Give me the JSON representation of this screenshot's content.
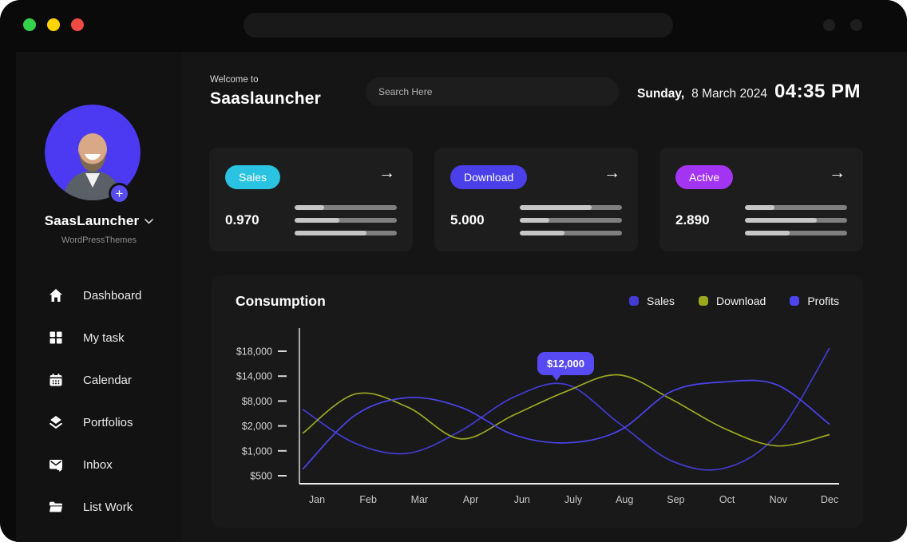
{
  "window": {
    "traffic_lights": [
      {
        "name": "green-light",
        "color": "#33d24b"
      },
      {
        "name": "yellow-light",
        "color": "#ffd400"
      },
      {
        "name": "red-light",
        "color": "#ee4b45"
      }
    ],
    "address_bar_value": ""
  },
  "sidebar": {
    "profile": {
      "name": "SaasLauncher",
      "org": "WordPressThemes",
      "add_label": "+"
    },
    "items": [
      {
        "icon": "home-icon",
        "label": "Dashboard"
      },
      {
        "icon": "grid-icon",
        "label": "My task"
      },
      {
        "icon": "calendar-icon",
        "label": "Calendar"
      },
      {
        "icon": "layers-icon",
        "label": "Portfolios"
      },
      {
        "icon": "inbox-icon",
        "label": "Inbox"
      },
      {
        "icon": "folder-icon",
        "label": "List Work"
      }
    ]
  },
  "header": {
    "welcome": "Welcome to",
    "brand": "Saaslauncher",
    "search_placeholder": "Search Here",
    "date_day": "Sunday,",
    "date_rest": "8 March 2024",
    "time": "04:35 PM"
  },
  "stat_cards": [
    {
      "badge": "Sales",
      "badge_color": "#2bc3e2",
      "value": "0.970",
      "arrow": "→",
      "bars": [
        0.29,
        0.44,
        0.7
      ]
    },
    {
      "badge": "Download",
      "badge_color": "#4a3fe8",
      "value": "5.000",
      "arrow": "→",
      "bars": [
        0.7,
        0.29,
        0.44
      ]
    },
    {
      "badge": "Active",
      "badge_color": "#a335f2",
      "value": "2.890",
      "arrow": "→",
      "bars": [
        0.29,
        0.7,
        0.44
      ]
    }
  ],
  "chart_data": {
    "type": "line",
    "title": "Consumption",
    "grid": false,
    "legend_position": "top-right",
    "x": [
      "Jan",
      "Feb",
      "Mar",
      "Apr",
      "Jun",
      "July",
      "Aug",
      "Sep",
      "Oct",
      "Nov",
      "Dec"
    ],
    "y_ticks": [
      {
        "label": "$500",
        "value": 500
      },
      {
        "label": "$1,000",
        "value": 1000
      },
      {
        "label": "$2,000",
        "value": 2000
      },
      {
        "label": "$8,000",
        "value": 8000
      },
      {
        "label": "$14,000",
        "value": 14000
      },
      {
        "label": "$18,000",
        "value": 18000
      }
    ],
    "series": [
      {
        "name": "Sales",
        "color": "#443bd4",
        "values": [
          6000,
          1300,
          950,
          1800,
          8900,
          12000,
          2700,
          800,
          650,
          1650,
          18500
        ]
      },
      {
        "name": "Download",
        "color": "#9aa820",
        "values": [
          1700,
          9700,
          6500,
          1480,
          4600,
          10300,
          14200,
          8400,
          1900,
          1200,
          1650
        ]
      },
      {
        "name": "Profits",
        "color": "#4d43f0",
        "values": [
          630,
          4600,
          8800,
          6500,
          1650,
          1320,
          1800,
          10300,
          12600,
          11900,
          2400
        ]
      }
    ],
    "tooltip": {
      "text": "$12,000",
      "series": "Sales",
      "month": "July",
      "color": "#584af2"
    }
  }
}
